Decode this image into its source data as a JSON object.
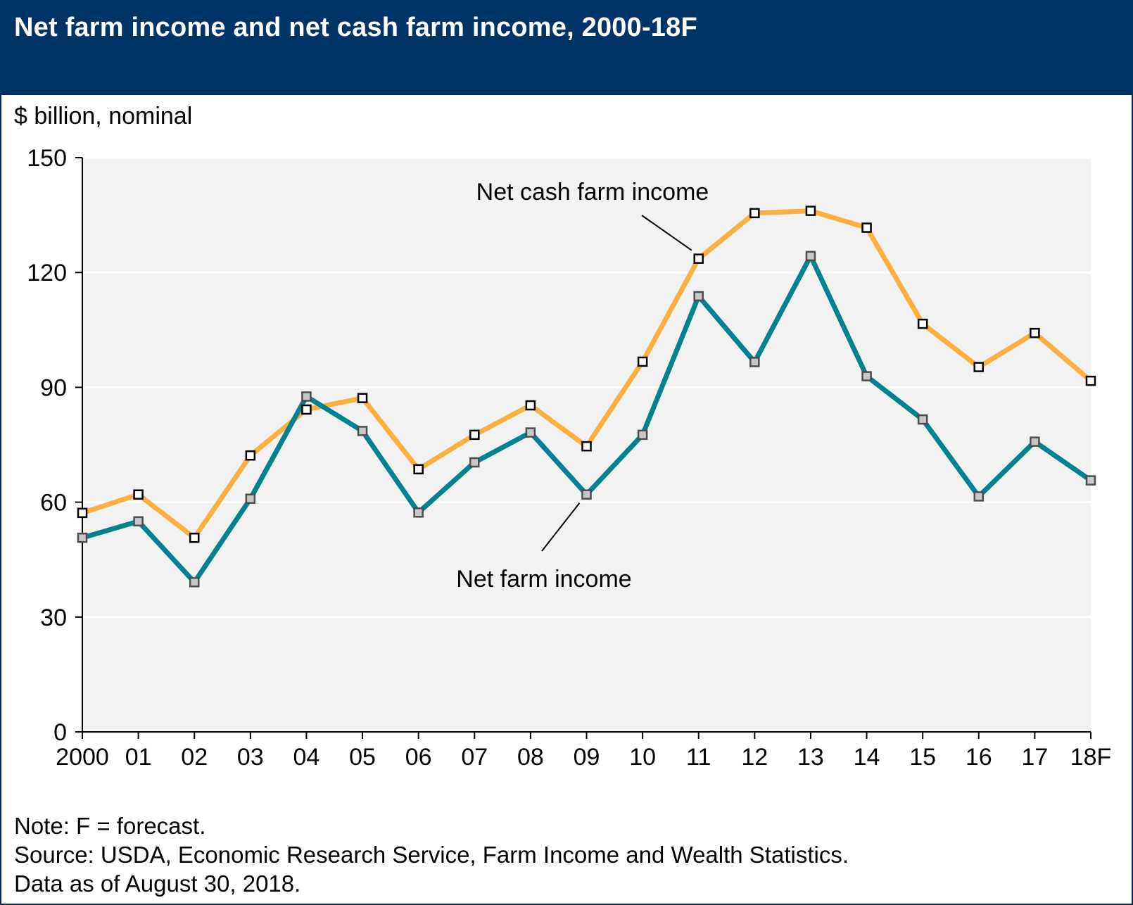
{
  "header": {
    "title": "Net farm income and net cash farm income, 2000-18F"
  },
  "chart_data": {
    "type": "line",
    "title": "Net farm income and net cash farm income, 2000-18F",
    "ylabel": "$ billion, nominal",
    "xlabel": "",
    "categories": [
      "2000",
      "01",
      "02",
      "03",
      "04",
      "05",
      "06",
      "07",
      "08",
      "09",
      "10",
      "11",
      "12",
      "13",
      "14",
      "15",
      "16",
      "17",
      "18F"
    ],
    "series": [
      {
        "name": "Net cash farm income",
        "color": "#fbb040",
        "values": [
          57.2,
          62.0,
          50.7,
          72.2,
          84.2,
          87.2,
          68.6,
          77.6,
          85.3,
          74.6,
          96.7,
          123.6,
          135.5,
          136.1,
          131.7,
          106.6,
          95.3,
          104.2,
          91.7
        ]
      },
      {
        "name": "Net farm income",
        "color": "#008291",
        "values": [
          50.7,
          55.0,
          39.1,
          60.9,
          87.6,
          78.6,
          57.3,
          70.4,
          78.2,
          62.0,
          77.6,
          113.8,
          96.6,
          124.3,
          92.9,
          81.6,
          61.5,
          75.8,
          65.7
        ]
      }
    ],
    "ylim": [
      0,
      150
    ],
    "yticks": [
      0,
      30,
      60,
      90,
      120,
      150
    ],
    "grid": true,
    "plot_background": "#f2f2f2",
    "marker": "square",
    "annotations": [
      {
        "text": "Net cash farm income",
        "series": 0,
        "point": "11"
      },
      {
        "text": "Net farm income",
        "series": 1,
        "point": "09"
      }
    ]
  },
  "notes": [
    "Note: F = forecast.",
    "Source: USDA, Economic Research Service, Farm Income and Wealth Statistics.",
    "Data as of August 30, 2018."
  ]
}
